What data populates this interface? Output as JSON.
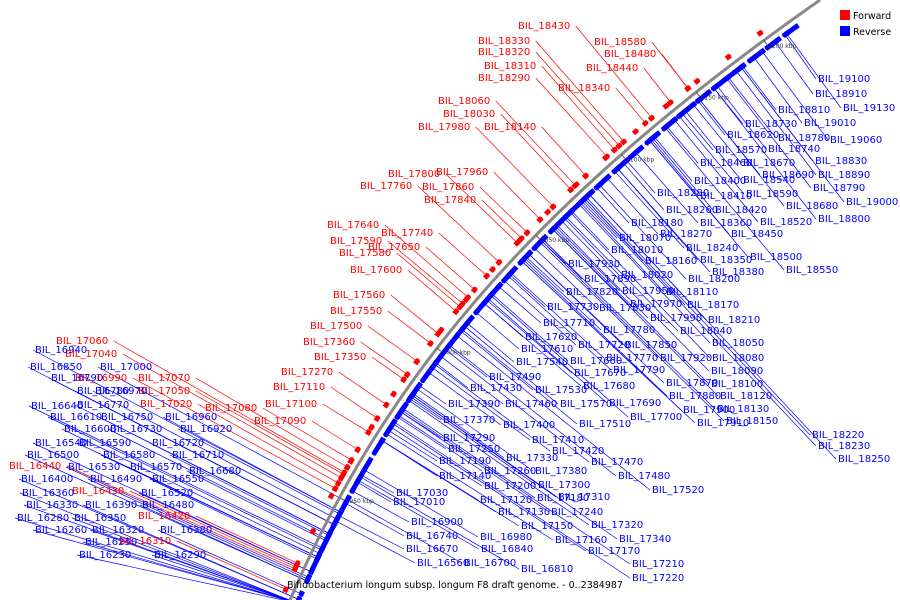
{
  "caption": "Bifidobacterium longum subsp. longum F8 draft genome. - 0..2384987",
  "legend": [
    {
      "label": "Forward",
      "color": "#ff0000"
    },
    {
      "label": "Reverse",
      "color": "#0000ff"
    }
  ],
  "colors": {
    "forward": "#ff0000",
    "reverse": "#0000ff",
    "backbone": "#888888"
  },
  "ticks": [
    "1950 kbp",
    "2000 kbp",
    "2050 kbp",
    "2100 kbp",
    "2150 kbp",
    "2200 kbp"
  ],
  "forward_labels": [
    "BIL_18430",
    "BIL_18580",
    "BIL_18330",
    "BIL_18480",
    "BIL_18320",
    "BIL_18310",
    "BIL_18440",
    "BIL_18290",
    "BIL_18340",
    "BIL_18060",
    "BIL_18030",
    "BIL_17980",
    "BIL_18140",
    "BIL_17960",
    "BIL_17800",
    "BIL_17860",
    "BIL_17760",
    "BIL_17840",
    "BIL_17640",
    "BIL_17740",
    "BIL_17590",
    "BIL_17650",
    "BIL_17580",
    "BIL_17600",
    "BIL_17560",
    "BIL_17550",
    "BIL_17500",
    "BIL_17360",
    "BIL_17350",
    "BIL_17270",
    "BIL_17110",
    "BIL_17100",
    "BIL_17090",
    "BIL_17060",
    "BIL_17040",
    "BIL_16990",
    "BIL_17070",
    "BIL_17050",
    "BIL_17020",
    "BIL_17080",
    "BIL_16440",
    "BIL_16430",
    "BIL_16420",
    "BIL_16310"
  ],
  "reverse_labels": [
    "BIL_19100",
    "BIL_18910",
    "BIL_19130",
    "BIL_18810",
    "BIL_19010",
    "BIL_18730",
    "BIL_18780",
    "BIL_19060",
    "BIL_18620",
    "BIL_18740",
    "BIL_18570",
    "BIL_18830",
    "BIL_18670",
    "BIL_18690",
    "BIL_18890",
    "BIL_18460",
    "BIL_18540",
    "BIL_18790",
    "BIL_18400",
    "BIL_19000",
    "BIL_18280",
    "BIL_18410",
    "BIL_18590",
    "BIL_18680",
    "BIL_18800",
    "BIL_18420",
    "BIL_18260",
    "BIL_18520",
    "BIL_18180",
    "BIL_18360",
    "BIL_18070",
    "BIL_18270",
    "BIL_18450",
    "BIL_18010",
    "BIL_18240",
    "BIL_18500",
    "BIL_18160",
    "BIL_18350",
    "BIL_18550",
    "BIL_18020",
    "BIL_18380",
    "BIL_18200",
    "BIL_17930",
    "BIL_17890",
    "BIL_18110",
    "BIL_17950",
    "BIL_17820",
    "BIL_18170",
    "BIL_17970",
    "BIL_17730",
    "BIL_17830",
    "BIL_17990",
    "BIL_18210",
    "BIL_17710",
    "BIL_18040",
    "BIL_17780",
    "BIL_17620",
    "BIL_17850",
    "BIL_18050",
    "BIL_17610",
    "BIL_17720",
    "BIL_17770",
    "BIL_17920",
    "BIL_18080",
    "BIL_17540",
    "BIL_17660",
    "BIL_18090",
    "BIL_17490",
    "BIL_17790",
    "BIL_17670",
    "BIL_18100",
    "BIL_17430",
    "BIL_17530",
    "BIL_17870",
    "BIL_17680",
    "BIL_18120",
    "BIL_17390",
    "BIL_17460",
    "BIL_17570",
    "BIL_17880",
    "BIL_18130",
    "BIL_17690",
    "BIL_17900",
    "BIL_17370",
    "BIL_17400",
    "BIL_17510",
    "BIL_17700",
    "BIL_18150",
    "BIL_17910",
    "BIL_17290",
    "BIL_17410",
    "BIL_18220",
    "BIL_17250",
    "BIL_17420",
    "BIL_18230",
    "BIL_17190",
    "BIL_17330",
    "BIL_18250",
    "BIL_17470",
    "BIL_17140",
    "BIL_17260",
    "BIL_17380",
    "BIL_17480",
    "BIL_17200",
    "BIL_17300",
    "BIL_17520",
    "BIL_17030",
    "BIL_17120",
    "BIL_17180",
    "BIL_17010",
    "BIL_17310",
    "BIL_17130",
    "BIL_17240",
    "BIL_16900",
    "BIL_17150",
    "BIL_17320",
    "BIL_16740",
    "BIL_16980",
    "BIL_17160",
    "BIL_17340",
    "BIL_16670",
    "BIL_16840",
    "BIL_17170",
    "BIL_16560",
    "BIL_16700",
    "BIL_17210",
    "BIL_16810",
    "BIL_17220",
    "BIL_16940",
    "BIL_16850",
    "BIL_17000",
    "BIL_16790",
    "BIL_16780",
    "BIL_16970",
    "BIL_16640",
    "BIL_16770",
    "BIL_16750",
    "BIL_16960",
    "BIL_16610",
    "BIL_16730",
    "BIL_16920",
    "BIL_16600",
    "BIL_16540",
    "BIL_16590",
    "BIL_16720",
    "BIL_16500",
    "BIL_16580",
    "BIL_16710",
    "BIL_16530",
    "BIL_16570",
    "BIL_16680",
    "BIL_16400",
    "BIL_16490",
    "BIL_16550",
    "BIL_16360",
    "BIL_16520",
    "BIL_16330",
    "BIL_16390",
    "BIL_16480",
    "BIL_16280",
    "BIL_16350",
    "BIL_16260",
    "BIL_16320",
    "BIL_16380",
    "BIL_16250",
    "BIL_16230",
    "BIL_16290"
  ]
}
